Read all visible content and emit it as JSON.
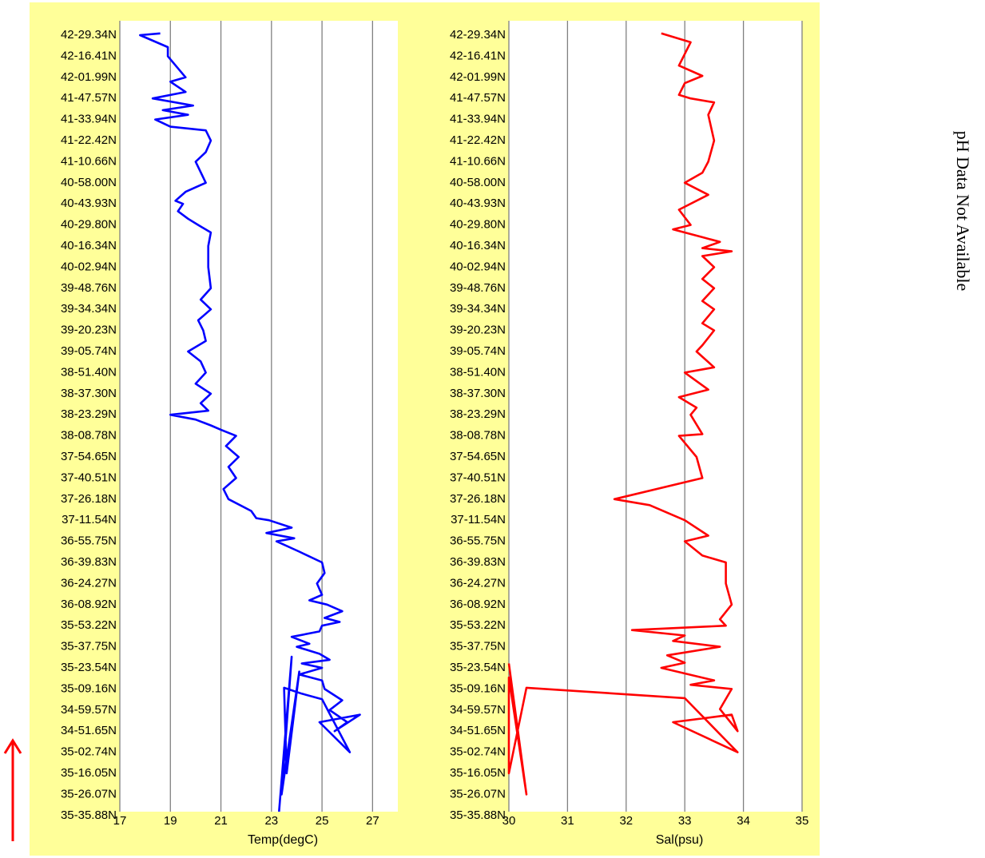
{
  "side_note": "pH Data Not Available",
  "colors": {
    "panel_background": "#ffff99",
    "plot_background": "#ffffff",
    "gridline": "#808080",
    "temperature_line": "#0000ff",
    "salinity_line": "#ff0000",
    "direction_arrow": "#ff0000"
  },
  "direction_arrow": {
    "icon": "arrow-up-icon",
    "meaning_direction": "up"
  },
  "chart_data": [
    {
      "type": "line",
      "xlabel": "Temp(degC)",
      "ylabel": "",
      "xlim": [
        17,
        28
      ],
      "xticks": [
        17,
        19,
        21,
        23,
        25,
        27
      ],
      "grid": "vertical",
      "y_tick_labels": [
        "42-29.34N",
        "42-16.41N",
        "42-01.99N",
        "41-47.57N",
        "41-33.94N",
        "41-22.42N",
        "41-10.66N",
        "40-58.00N",
        "40-43.93N",
        "40-29.80N",
        "40-16.34N",
        "40-02.94N",
        "39-48.76N",
        "39-34.34N",
        "39-20.23N",
        "39-05.74N",
        "38-51.40N",
        "38-37.30N",
        "38-23.29N",
        "38-08.78N",
        "37-54.65N",
        "37-40.51N",
        "37-26.18N",
        "37-11.54N",
        "36-55.75N",
        "36-39.83N",
        "36-24.27N",
        "36-08.92N",
        "35-53.22N",
        "35-37.75N",
        "35-23.54N",
        "35-09.16N",
        "34-59.57N",
        "34-51.65N",
        "35-02.74N",
        "35-16.05N",
        "35-26.07N",
        "35-35.88N"
      ],
      "series": [
        {
          "color": "#0000ff",
          "x": [
            18.6,
            17.8,
            18.9,
            18.9,
            19.6,
            19.0,
            19.6,
            18.3,
            19.9,
            18.7,
            19.7,
            18.4,
            19.0,
            20.4,
            20.6,
            20.4,
            20.0,
            20.4,
            19.6,
            19.2,
            19.5,
            19.3,
            19.7,
            20.1,
            20.6,
            20.5,
            20.5,
            20.6,
            20.2,
            20.6,
            20.1,
            20.3,
            20.4,
            19.7,
            20.2,
            20.4,
            20.0,
            20.6,
            20.2,
            20.5,
            19.0,
            20.0,
            20.6,
            21.0,
            21.6,
            21.2,
            21.7,
            21.3,
            21.6,
            21.1,
            21.3,
            22.2,
            22.4,
            22.9,
            23.8,
            22.8,
            23.9,
            23.2,
            24.1,
            25.0,
            25.1,
            24.8,
            25.0,
            24.5,
            25.2,
            25.8,
            25.1,
            25.7,
            25.0,
            24.9,
            23.8,
            24.5,
            24.0,
            24.9,
            25.3,
            24.2,
            25.0,
            24.1,
            25.0,
            25.1,
            25.8,
            25.3,
            26.0,
            25.5,
            26.5,
            24.9,
            26.1,
            25.0,
            24.2,
            23.5,
            23.6,
            24.1,
            23.4,
            23.8,
            23.3
          ],
          "y": [
            "42-30.40N",
            "42-29.34N",
            "42-22.00N",
            "42-16.41N",
            "42-01.99N",
            "41-59.00N",
            "41-52.00N",
            "41-47.57N",
            "41-43.00N",
            "41-40.00N",
            "41-37.00N",
            "41-33.94N",
            "41-30.00N",
            "41-28.00N",
            "41-22.42N",
            "41-16.00N",
            "41-10.66N",
            "40-58.00N",
            "40-52.00N",
            "40-46.00N",
            "40-43.93N",
            "40-39.00N",
            "40-34.00N",
            "40-29.80N",
            "40-25.00N",
            "40-16.34N",
            "40-02.94N",
            "39-48.76N",
            "39-41.00N",
            "39-34.34N",
            "39-27.00N",
            "39-20.23N",
            "39-13.00N",
            "39-05.74N",
            "38-59.00N",
            "38-51.40N",
            "38-44.00N",
            "38-37.30N",
            "38-31.00N",
            "38-26.00N",
            "38-23.29N",
            "38-20.00N",
            "38-16.00N",
            "38-13.00N",
            "38-08.78N",
            "38-02.00N",
            "37-54.65N",
            "37-48.00N",
            "37-40.51N",
            "37-33.00N",
            "37-26.18N",
            "37-18.00N",
            "37-13.00N",
            "37-11.54N",
            "37-06.00N",
            "37-02.00N",
            "36-58.00N",
            "36-55.75N",
            "36-48.00N",
            "36-39.83N",
            "36-32.00N",
            "36-24.27N",
            "36-16.00N",
            "36-12.00N",
            "36-08.92N",
            "36-04.00N",
            "35-59.00N",
            "35-56.00N",
            "35-53.22N",
            "35-49.00N",
            "35-45.00N",
            "35-40.00N",
            "35-37.75N",
            "35-33.00N",
            "35-29.00N",
            "35-26.50N",
            "35-23.54N",
            "35-19.00N",
            "35-15.00N",
            "35-09.16N",
            "35-04.00N",
            "34-59.57N",
            "34-55.00N",
            "34-51.65N",
            "34-49.00N",
            "34-55.00N",
            "35-02.74N",
            "35-04.50N",
            "35-07.00N",
            "35-10.00N",
            "35-16.05N",
            "35-21.00N",
            "35-26.07N",
            "35-31.00N",
            "35-35.88N"
          ]
        }
      ]
    },
    {
      "type": "line",
      "xlabel": "Sal(psu)",
      "ylabel": "",
      "xlim": [
        30,
        35
      ],
      "xticks": [
        30,
        31,
        32,
        33,
        34,
        35
      ],
      "grid": "vertical",
      "y_tick_labels": [
        "42-29.34N",
        "42-16.41N",
        "42-01.99N",
        "41-47.57N",
        "41-33.94N",
        "41-22.42N",
        "41-10.66N",
        "40-58.00N",
        "40-43.93N",
        "40-29.80N",
        "40-16.34N",
        "40-02.94N",
        "39-48.76N",
        "39-34.34N",
        "39-20.23N",
        "39-05.74N",
        "38-51.40N",
        "38-37.30N",
        "38-23.29N",
        "38-08.78N",
        "37-54.65N",
        "37-40.51N",
        "37-26.18N",
        "37-11.54N",
        "36-55.75N",
        "36-39.83N",
        "36-24.27N",
        "36-08.92N",
        "35-53.22N",
        "35-37.75N",
        "35-23.54N",
        "35-09.16N",
        "34-59.57N",
        "34-51.65N",
        "35-02.74N",
        "35-16.05N",
        "35-26.07N",
        "35-35.88N"
      ],
      "series": [
        {
          "color": "#ff0000",
          "x": [
            32.6,
            33.1,
            32.9,
            33.3,
            33.0,
            32.9,
            33.1,
            33.5,
            33.4,
            33.5,
            33.4,
            33.3,
            33.0,
            33.4,
            32.9,
            33.1,
            32.8,
            33.3,
            33.6,
            33.3,
            33.8,
            33.3,
            33.5,
            33.3,
            33.5,
            33.3,
            33.5,
            33.3,
            33.5,
            33.3,
            33.2,
            33.5,
            33.0,
            33.4,
            32.9,
            33.2,
            33.1,
            33.3,
            32.9,
            33.2,
            33.3,
            31.8,
            32.4,
            33.0,
            33.4,
            33.0,
            33.3,
            33.7,
            33.7,
            33.8,
            33.6,
            33.7,
            32.1,
            33.0,
            32.8,
            33.6,
            32.7,
            33.0,
            32.6,
            33.5,
            33.1,
            33.8,
            33.6,
            33.9,
            33.8,
            32.8,
            33.9,
            33.0,
            30.3,
            30.0,
            30.0,
            30.3,
            30.0
          ],
          "y": [
            "42-30.40N",
            "42-25.00N",
            "42-10.00N",
            "42-03.00N",
            "41-58.00N",
            "41-50.00N",
            "41-47.57N",
            "41-45.00N",
            "41-37.00N",
            "41-22.42N",
            "41-10.66N",
            "41-04.00N",
            "40-58.00N",
            "40-50.00N",
            "40-40.00N",
            "40-29.80N",
            "40-27.00N",
            "40-22.00N",
            "40-19.00N",
            "40-15.00N",
            "40-13.00N",
            "40-10.00N",
            "40-02.94N",
            "39-55.00N",
            "39-48.76N",
            "39-40.00N",
            "39-34.34N",
            "39-25.00N",
            "39-20.23N",
            "39-10.00N",
            "39-05.74N",
            "38-55.00N",
            "38-51.40N",
            "38-40.00N",
            "38-35.00N",
            "38-28.00N",
            "38-23.29N",
            "38-10.00N",
            "38-08.78N",
            "37-54.65N",
            "37-40.51N",
            "37-26.18N",
            "37-22.00N",
            "37-11.54N",
            "37-00.00N",
            "36-55.75N",
            "36-45.00N",
            "36-39.83N",
            "36-24.27N",
            "36-08.92N",
            "35-58.00N",
            "35-53.22N",
            "35-50.00N",
            "35-46.00N",
            "35-42.00N",
            "35-37.75N",
            "35-32.00N",
            "35-27.00N",
            "35-23.54N",
            "35-15.00N",
            "35-12.00N",
            "35-09.16N",
            "35-00.00N",
            "34-51.65N",
            "34-49.00N",
            "34-55.00N",
            "35-02.74N",
            "35-05.00N",
            "35-10.00N",
            "35-16.05N",
            "35-17.00N",
            "35-26.07N",
            "35-26.50N"
          ]
        }
      ]
    }
  ]
}
